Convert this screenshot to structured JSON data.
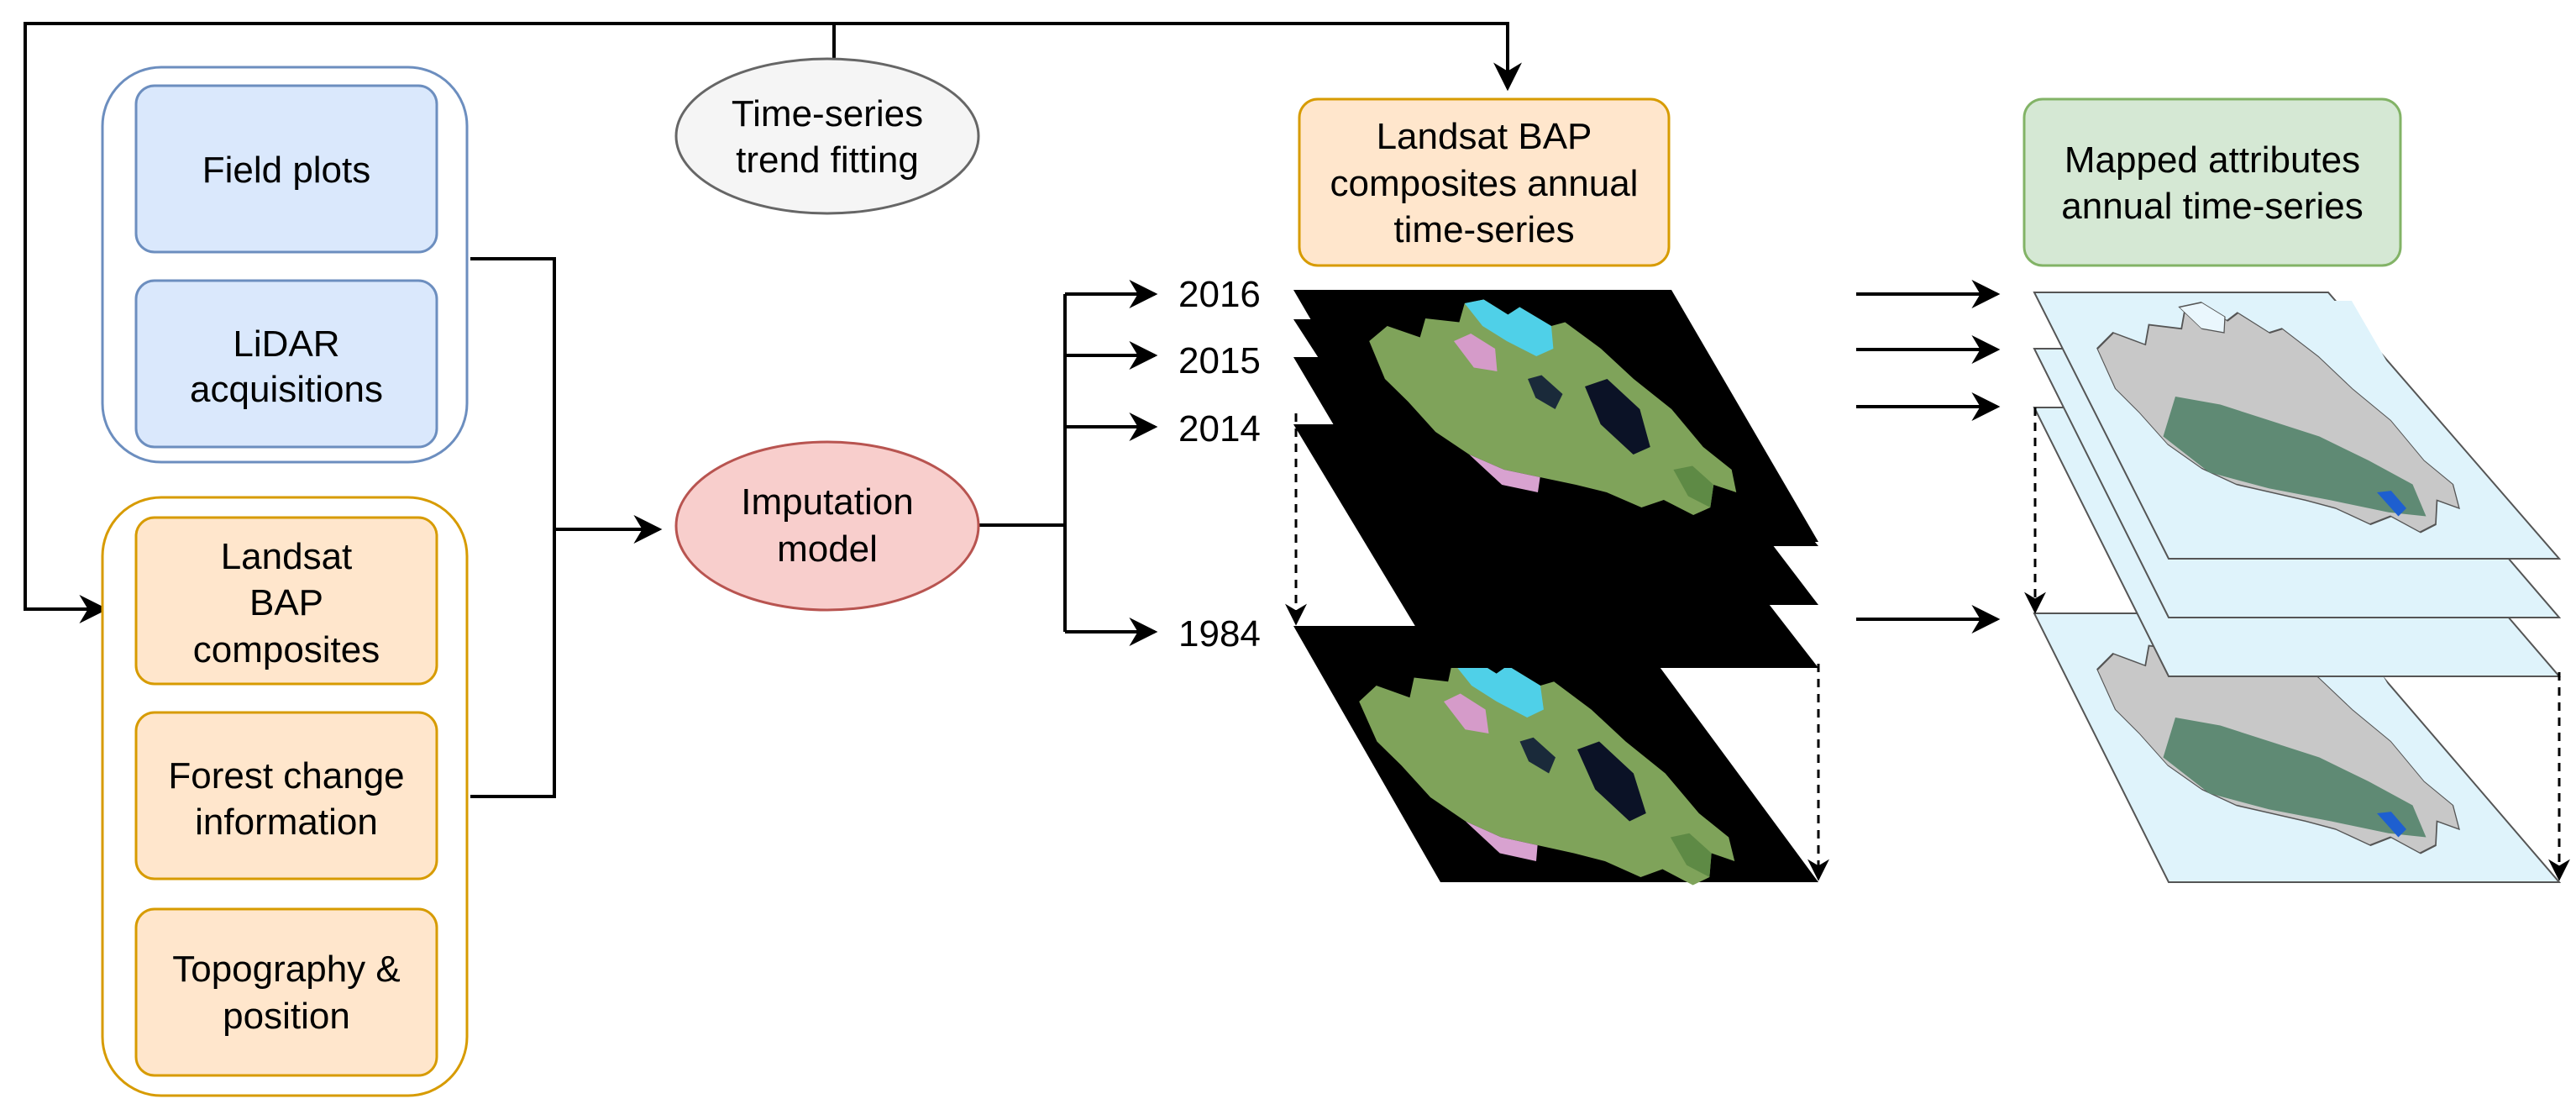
{
  "diagram": {
    "nodes": {
      "field_plots": [
        "Field plots"
      ],
      "lidar": [
        "LiDAR",
        "acquisitions"
      ],
      "landsat_bap": [
        "Landsat",
        "BAP",
        "composites"
      ],
      "forest_change": [
        "Forest change",
        "information"
      ],
      "topography": [
        "Topography &",
        "position"
      ],
      "trend_fitting": [
        "Time-series",
        "trend fitting"
      ],
      "imputation": [
        "Imputation",
        "model"
      ],
      "composites_series": [
        "Landsat BAP",
        "composites annual",
        "time-series"
      ],
      "mapped_series": [
        "Mapped attributes",
        "annual time-series"
      ]
    },
    "years": [
      "2016",
      "2015",
      "2014",
      "1984"
    ],
    "colors": {
      "blue_fill": "#dae8fc",
      "blue_stroke": "#6c8ebf",
      "orange_fill": "#ffe6cc",
      "orange_stroke": "#d79b00",
      "red_fill": "#f8cecc",
      "red_stroke": "#b85450",
      "gray_fill": "#f5f5f5",
      "gray_stroke": "#666666",
      "green_fill": "#d5e8d4",
      "green_stroke": "#82b366"
    }
  }
}
